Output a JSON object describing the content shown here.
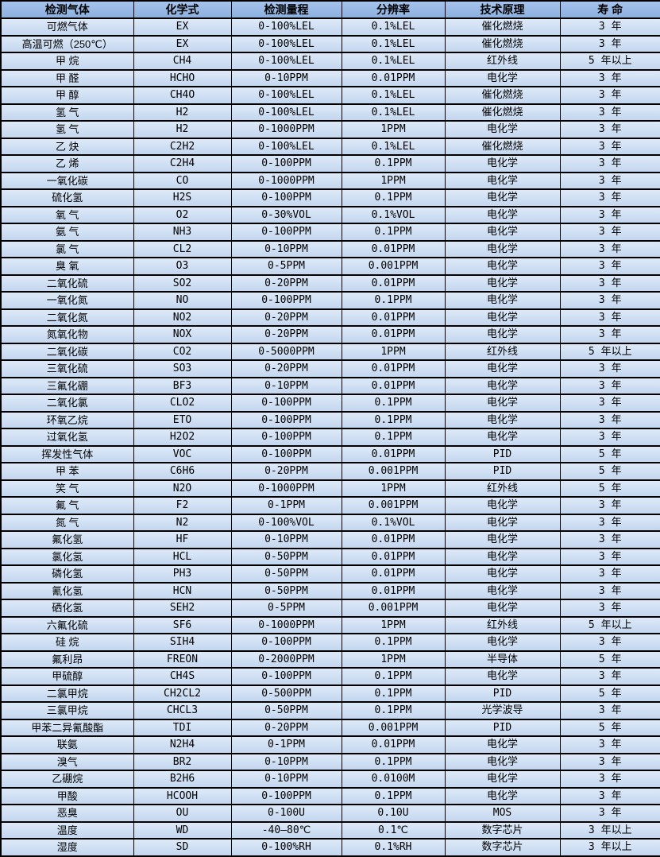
{
  "colors": {
    "header_bg_top": "#a6c4ec",
    "header_bg_bottom": "#8cb0de",
    "row_bg_top": "#dde9f8",
    "row_bg_bottom": "#c4d7ef",
    "border": "#000000",
    "text": "#000000"
  },
  "table": {
    "headers": [
      "检测气体",
      "化学式",
      "检测量程",
      "分辨率",
      "技术原理",
      "寿 命"
    ],
    "column_keys": [
      "gas",
      "formula",
      "range",
      "resolution",
      "principle",
      "lifespan"
    ],
    "rows": [
      [
        "可燃气体",
        "EX",
        "0-100%LEL",
        "0.1%LEL",
        "催化燃烧",
        "3 年"
      ],
      [
        "高温可燃（250℃）",
        "EX",
        "0-100%LEL",
        "0.1%LEL",
        "催化燃烧",
        "3 年"
      ],
      [
        "甲 烷",
        "CH4",
        "0-100%LEL",
        "0.1%LEL",
        "红外线",
        "5 年以上"
      ],
      [
        "甲 醛",
        "HCHO",
        "0-10PPM",
        "0.01PPM",
        "电化学",
        "3 年"
      ],
      [
        "甲 醇",
        "CH4O",
        "0-100%LEL",
        "0.1%LEL",
        "催化燃烧",
        "3 年"
      ],
      [
        "氢 气",
        "H2",
        "0-100%LEL",
        "0.1%LEL",
        "催化燃烧",
        "3 年"
      ],
      [
        "氢 气",
        "H2",
        "0-1000PPM",
        "1PPM",
        "电化学",
        "3 年"
      ],
      [
        "乙 炔",
        "C2H2",
        "0-100%LEL",
        "0.1%LEL",
        "催化燃烧",
        "3 年"
      ],
      [
        "乙 烯",
        "C2H4",
        "0-100PPM",
        "0.1PPM",
        "电化学",
        "3 年"
      ],
      [
        "一氧化碳",
        "CO",
        "0-1000PPM",
        "1PPM",
        "电化学",
        "3 年"
      ],
      [
        "硫化氢",
        "H2S",
        "0-100PPM",
        "0.1PPM",
        "电化学",
        "3 年"
      ],
      [
        "氧 气",
        "O2",
        "0-30%VOL",
        "0.1%VOL",
        "电化学",
        "3 年"
      ],
      [
        "氨 气",
        "NH3",
        "0-100PPM",
        "0.1PPM",
        "电化学",
        "3 年"
      ],
      [
        "氯 气",
        "CL2",
        "0-10PPM",
        "0.01PPM",
        "电化学",
        "3 年"
      ],
      [
        "臭 氧",
        "O3",
        "0-5PPM",
        "0.001PPM",
        "电化学",
        "3 年"
      ],
      [
        "二氧化硫",
        "SO2",
        "0-20PPM",
        "0.01PPM",
        "电化学",
        "3 年"
      ],
      [
        "一氧化氮",
        "NO",
        "0-100PPM",
        "0.1PPM",
        "电化学",
        "3 年"
      ],
      [
        "二氧化氮",
        "NO2",
        "0-20PPM",
        "0.01PPM",
        "电化学",
        "3 年"
      ],
      [
        "氮氧化物",
        "NOX",
        "0-20PPM",
        "0.01PPM",
        "电化学",
        "3 年"
      ],
      [
        "二氧化碳",
        "CO2",
        "0-5000PPM",
        "1PPM",
        "红外线",
        "5 年以上"
      ],
      [
        "三氧化硫",
        "SO3",
        "0-20PPM",
        "0.01PPM",
        "电化学",
        "3 年"
      ],
      [
        "三氟化硼",
        "BF3",
        "0-10PPM",
        "0.01PPM",
        "电化学",
        "3 年"
      ],
      [
        "二氧化氯",
        "CLO2",
        "0-100PPM",
        "0.1PPM",
        "电化学",
        "3 年"
      ],
      [
        "环氧乙烷",
        "ETO",
        "0-100PPM",
        "0.1PPM",
        "电化学",
        "3 年"
      ],
      [
        "过氧化氢",
        "H2O2",
        "0-100PPM",
        "0.1PPM",
        "电化学",
        "3 年"
      ],
      [
        "挥发性气体",
        "VOC",
        "0-100PPM",
        "0.01PPM",
        "PID",
        "5 年"
      ],
      [
        "甲 苯",
        "C6H6",
        "0-20PPM",
        "0.001PPM",
        "PID",
        "5 年"
      ],
      [
        "笑 气",
        "N2O",
        "0-1000PPM",
        "1PPM",
        "红外线",
        "5 年"
      ],
      [
        "氟 气",
        "F2",
        "0-1PPM",
        "0.001PPM",
        "电化学",
        "3 年"
      ],
      [
        "氮 气",
        "N2",
        "0-100%VOL",
        "0.1%VOL",
        "电化学",
        "3 年"
      ],
      [
        "氟化氢",
        "HF",
        "0-10PPM",
        "0.01PPM",
        "电化学",
        "3 年"
      ],
      [
        "氯化氢",
        "HCL",
        "0-50PPM",
        "0.01PPM",
        "电化学",
        "3 年"
      ],
      [
        "磷化氢",
        "PH3",
        "0-50PPM",
        "0.01PPM",
        "电化学",
        "3 年"
      ],
      [
        "氰化氢",
        "HCN",
        "0-50PPM",
        "0.01PPM",
        "电化学",
        "3 年"
      ],
      [
        "硒化氢",
        "SEH2",
        "0-5PPM",
        "0.001PPM",
        "电化学",
        "3 年"
      ],
      [
        "六氟化硫",
        "SF6",
        "0-1000PPM",
        "1PPM",
        "红外线",
        "5 年以上"
      ],
      [
        "硅 烷",
        "SIH4",
        "0-100PPM",
        "0.1PPM",
        "电化学",
        "3 年"
      ],
      [
        "氟利昂",
        "FREON",
        "0-2000PPM",
        "1PPM",
        "半导体",
        "5 年"
      ],
      [
        "甲硫醇",
        "CH4S",
        "0-100PPM",
        "0.1PPM",
        "电化学",
        "3 年"
      ],
      [
        "二氯甲烷",
        "CH2CL2",
        "0-500PPM",
        "0.1PPM",
        "PID",
        "5 年"
      ],
      [
        "三氯甲烷",
        "CHCL3",
        "0-50PPM",
        "0.1PPM",
        "光学波导",
        "3 年"
      ],
      [
        "甲苯二异氰酸酯",
        "TDI",
        "0-20PPM",
        "0.001PPM",
        "PID",
        "5 年"
      ],
      [
        "联氨",
        "N2H4",
        "0-1PPM",
        "0.01PPM",
        "电化学",
        "3 年"
      ],
      [
        "溴气",
        "BR2",
        "0-10PPM",
        "0.1PPM",
        "电化学",
        "3 年"
      ],
      [
        "乙硼烷",
        "B2H6",
        "0-10PPM",
        "0.0100M",
        "电化学",
        "3 年"
      ],
      [
        "甲酸",
        "HCOOH",
        "0-100PPM",
        "0.1PPM",
        "电化学",
        "3 年"
      ],
      [
        "恶臭",
        "OU",
        "0-100U",
        "0.10U",
        "MOS",
        "3 年"
      ],
      [
        "温度",
        "WD",
        "-40—80℃",
        "0.1℃",
        "数字芯片",
        "3 年以上"
      ],
      [
        "湿度",
        "SD",
        "0-100%RH",
        "0.1%RH",
        "数字芯片",
        "3 年以上"
      ]
    ]
  }
}
